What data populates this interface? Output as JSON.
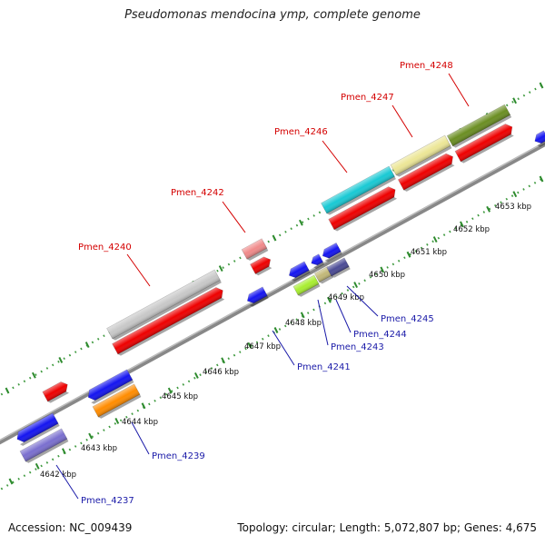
{
  "title": "Pseudomonas mendocina ymp, complete genome",
  "footer": {
    "accession": "Accession: NC_009439",
    "summary": "Topology: circular; Length: 5,072,807 bp; Genes: 4,675"
  },
  "colors": {
    "backbone": "#888888",
    "tick_major": "#2e8b2e",
    "tick_dot": "#3f9a3f",
    "label_top": "#d40000",
    "label_bottom": "#1a1aa8"
  },
  "scale_ticks": [
    {
      "label": "4642 kbp"
    },
    {
      "label": "4643 kbp"
    },
    {
      "label": "4644 kbp"
    },
    {
      "label": "4645 kbp"
    },
    {
      "label": "4646 kbp"
    },
    {
      "label": "4647 kbp"
    },
    {
      "label": "4648 kbp"
    },
    {
      "label": "4649 kbp"
    },
    {
      "label": "4650 kbp"
    },
    {
      "label": "4651 kbp"
    },
    {
      "label": "4652 kbp"
    },
    {
      "label": "4653 kbp"
    }
  ],
  "gene_labels_top": [
    {
      "label": "Pmen_4240"
    },
    {
      "label": "Pmen_4242"
    },
    {
      "label": "Pmen_4246"
    },
    {
      "label": "Pmen_4247"
    },
    {
      "label": "Pmen_4248"
    }
  ],
  "gene_labels_bottom": [
    {
      "label": "Pmen_4237"
    },
    {
      "label": "Pmen_4239"
    },
    {
      "label": "Pmen_4241"
    },
    {
      "label": "Pmen_4243"
    },
    {
      "label": "Pmen_4244"
    },
    {
      "label": "Pmen_4245"
    }
  ]
}
